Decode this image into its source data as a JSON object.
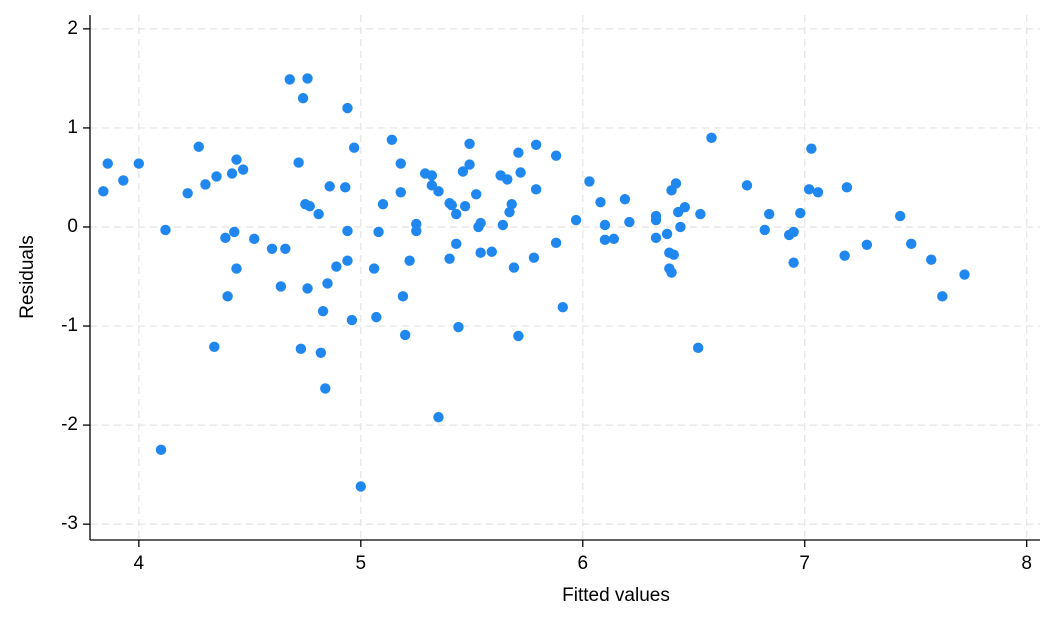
{
  "chart_data": {
    "type": "scatter",
    "x_label": "Fitted values",
    "y_label": "Residuals",
    "color": "#1f87ee",
    "grid": true,
    "xlim": [
      3.78,
      8.06
    ],
    "ylim": [
      -3.16,
      2.14
    ],
    "xticks": [
      4,
      5,
      6,
      7,
      8
    ],
    "yticks": [
      -3,
      -2,
      -1,
      0,
      1,
      2
    ],
    "x": [
      3.84,
      3.86,
      3.93,
      4.0,
      4.1,
      4.12,
      4.22,
      4.27,
      4.3,
      4.34,
      4.35,
      4.39,
      4.4,
      4.42,
      4.43,
      4.44,
      4.44,
      4.47,
      4.52,
      4.6,
      4.64,
      4.66,
      4.68,
      4.72,
      4.73,
      4.74,
      4.75,
      4.76,
      4.76,
      4.77,
      4.81,
      4.82,
      4.83,
      4.84,
      4.85,
      4.86,
      4.89,
      4.93,
      4.94,
      4.94,
      4.94,
      4.96,
      4.97,
      5.0,
      5.06,
      5.07,
      5.08,
      5.1,
      5.14,
      5.18,
      5.18,
      5.19,
      5.2,
      5.22,
      5.25,
      5.25,
      5.29,
      5.32,
      5.32,
      5.35,
      5.35,
      5.4,
      5.4,
      5.41,
      5.43,
      5.43,
      5.44,
      5.46,
      5.47,
      5.49,
      5.49,
      5.52,
      5.53,
      5.54,
      5.54,
      5.59,
      5.63,
      5.64,
      5.66,
      5.67,
      5.68,
      5.69,
      5.71,
      5.71,
      5.72,
      5.78,
      5.79,
      5.79,
      5.88,
      5.88,
      5.91,
      5.97,
      6.03,
      6.08,
      6.1,
      6.1,
      6.14,
      6.19,
      6.21,
      6.33,
      6.33,
      6.33,
      6.38,
      6.39,
      6.39,
      6.4,
      6.4,
      6.41,
      6.42,
      6.43,
      6.44,
      6.46,
      6.52,
      6.53,
      6.58,
      6.74,
      6.82,
      6.84,
      6.93,
      6.95,
      6.95,
      6.98,
      7.02,
      7.03,
      7.06,
      7.18,
      7.19,
      7.28,
      7.43,
      7.48,
      7.57,
      7.62,
      7.72
    ],
    "values": [
      0.36,
      0.64,
      0.47,
      0.64,
      -2.25,
      -0.03,
      0.34,
      0.81,
      0.43,
      -1.21,
      0.51,
      -0.11,
      -0.7,
      0.54,
      -0.05,
      0.68,
      -0.42,
      0.58,
      -0.12,
      -0.22,
      -0.6,
      -0.22,
      1.49,
      0.65,
      -1.23,
      1.3,
      0.23,
      -0.62,
      1.5,
      0.21,
      0.13,
      -1.27,
      -0.85,
      -1.63,
      -0.57,
      0.41,
      -0.4,
      0.4,
      1.2,
      -0.04,
      -0.34,
      -0.94,
      0.8,
      -2.62,
      -0.42,
      -0.91,
      -0.05,
      0.23,
      0.88,
      0.64,
      0.35,
      -0.7,
      -1.09,
      -0.34,
      0.03,
      -0.04,
      0.54,
      0.42,
      0.52,
      0.36,
      -1.92,
      -0.32,
      0.24,
      0.22,
      0.13,
      -0.17,
      -1.01,
      0.56,
      0.21,
      0.84,
      0.63,
      0.33,
      0.0,
      0.04,
      -0.26,
      -0.25,
      0.52,
      0.02,
      0.48,
      0.15,
      0.23,
      -0.41,
      -1.1,
      0.75,
      0.55,
      -0.31,
      0.83,
      0.38,
      -0.16,
      0.72,
      -0.81,
      0.07,
      0.46,
      0.25,
      0.02,
      -0.13,
      -0.12,
      0.28,
      0.05,
      0.11,
      -0.11,
      0.07,
      -0.07,
      -0.42,
      -0.26,
      -0.46,
      0.37,
      -0.28,
      0.44,
      0.15,
      0.0,
      0.2,
      -1.22,
      0.13,
      0.9,
      0.42,
      -0.03,
      0.13,
      -0.08,
      -0.05,
      -0.36,
      0.14,
      0.38,
      0.79,
      0.35,
      -0.29,
      0.4,
      -0.18,
      0.11,
      -0.17,
      -0.33,
      -0.7,
      -0.48
    ]
  }
}
